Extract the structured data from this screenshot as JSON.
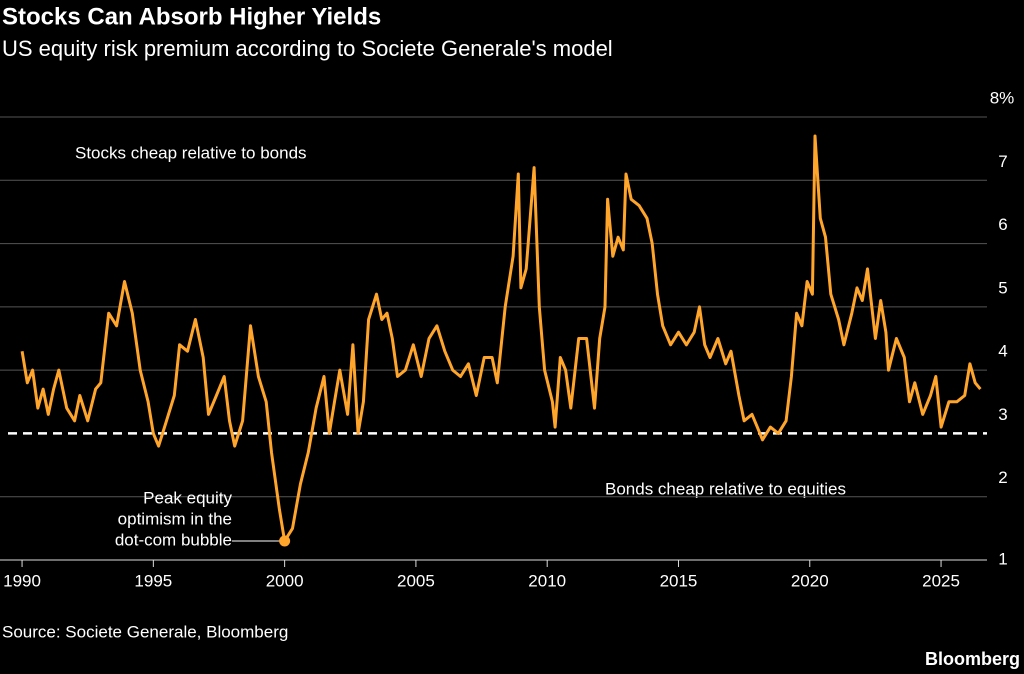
{
  "chart_data": {
    "type": "line",
    "title": "Stocks Can Absorb Higher Yields",
    "subtitle": "US equity risk premium according to Societe Generale's model",
    "source": "Source: Societe Generale, Bloomberg",
    "brand": "Bloomberg",
    "color": "#ffa52b",
    "grid": true,
    "reference_line": 3,
    "xlim": [
      1989.16,
      2026.75
    ],
    "xticks": [
      1990,
      1995,
      2000,
      2005,
      2010,
      2015,
      2020,
      2025
    ],
    "ylim": [
      1,
      8
    ],
    "yticks": [
      1,
      2,
      3,
      4,
      5,
      6,
      7,
      {
        "value": 8,
        "label": "8%"
      }
    ],
    "region_labels": [
      "Stocks cheap relative to bonds",
      "Bonds cheap relative to equities"
    ],
    "annotation": {
      "lines": [
        "Peak equity",
        "optimism in the",
        "dot-com bubble"
      ],
      "x": 2000,
      "y": 1.3
    },
    "x": [
      1990.0,
      1990.2,
      1990.4,
      1990.6,
      1990.8,
      1991.0,
      1991.2,
      1991.4,
      1991.7,
      1992.0,
      1992.2,
      1992.5,
      1992.8,
      1993.0,
      1993.3,
      1993.6,
      1993.9,
      1994.2,
      1994.5,
      1994.8,
      1995.0,
      1995.2,
      1995.5,
      1995.8,
      1996.0,
      1996.3,
      1996.6,
      1996.9,
      1997.1,
      1997.4,
      1997.7,
      1997.9,
      1998.1,
      1998.4,
      1998.7,
      1999.0,
      1999.3,
      1999.5,
      1999.8,
      2000.0,
      2000.3,
      2000.6,
      2000.9,
      2001.2,
      2001.5,
      2001.7,
      2001.9,
      2002.1,
      2002.4,
      2002.6,
      2002.8,
      2003.0,
      2003.2,
      2003.5,
      2003.7,
      2003.9,
      2004.1,
      2004.3,
      2004.6,
      2004.9,
      2005.2,
      2005.5,
      2005.8,
      2006.1,
      2006.4,
      2006.7,
      2007.0,
      2007.3,
      2007.6,
      2007.9,
      2008.1,
      2008.4,
      2008.7,
      2008.9,
      2009.0,
      2009.2,
      2009.5,
      2009.7,
      2009.9,
      2010.2,
      2010.3,
      2010.5,
      2010.7,
      2010.9,
      2011.2,
      2011.5,
      2011.8,
      2012.0,
      2012.2,
      2012.3,
      2012.5,
      2012.7,
      2012.9,
      2013.0,
      2013.2,
      2013.5,
      2013.8,
      2014.0,
      2014.2,
      2014.4,
      2014.7,
      2015.0,
      2015.3,
      2015.6,
      2015.8,
      2016.0,
      2016.2,
      2016.5,
      2016.8,
      2017.0,
      2017.3,
      2017.5,
      2017.8,
      2018.0,
      2018.2,
      2018.5,
      2018.8,
      2019.1,
      2019.3,
      2019.5,
      2019.7,
      2019.9,
      2020.1,
      2020.2,
      2020.4,
      2020.6,
      2020.8,
      2021.1,
      2021.3,
      2021.6,
      2021.8,
      2022.0,
      2022.2,
      2022.5,
      2022.7,
      2022.9,
      2023.0,
      2023.3,
      2023.6,
      2023.8,
      2024.0,
      2024.3,
      2024.6,
      2024.8,
      2025.0,
      2025.3,
      2025.6,
      2025.9,
      2026.1,
      2026.3,
      2026.5
    ],
    "values": [
      4.3,
      3.8,
      4.0,
      3.4,
      3.7,
      3.3,
      3.7,
      4.0,
      3.4,
      3.2,
      3.6,
      3.2,
      3.7,
      3.8,
      4.9,
      4.7,
      5.4,
      4.9,
      4.0,
      3.5,
      3.0,
      2.8,
      3.2,
      3.6,
      4.4,
      4.3,
      4.8,
      4.2,
      3.3,
      3.6,
      3.9,
      3.2,
      2.8,
      3.2,
      4.7,
      3.9,
      3.5,
      2.7,
      1.8,
      1.3,
      1.5,
      2.2,
      2.7,
      3.4,
      3.9,
      3.0,
      3.5,
      4.0,
      3.3,
      4.4,
      3.0,
      3.5,
      4.8,
      5.2,
      4.8,
      4.9,
      4.5,
      3.9,
      4.0,
      4.4,
      3.9,
      4.5,
      4.7,
      4.3,
      4.0,
      3.9,
      4.1,
      3.6,
      4.2,
      4.2,
      3.8,
      5.0,
      5.8,
      7.1,
      5.3,
      5.6,
      7.2,
      5.0,
      4.0,
      3.5,
      3.1,
      4.2,
      4.0,
      3.4,
      4.5,
      4.5,
      3.4,
      4.5,
      5.0,
      6.7,
      5.8,
      6.1,
      5.9,
      7.1,
      6.7,
      6.6,
      6.4,
      6.0,
      5.2,
      4.7,
      4.4,
      4.6,
      4.4,
      4.6,
      5.0,
      4.4,
      4.2,
      4.5,
      4.1,
      4.3,
      3.6,
      3.2,
      3.3,
      3.1,
      2.9,
      3.1,
      3.0,
      3.2,
      3.9,
      4.9,
      4.7,
      5.4,
      5.2,
      7.7,
      6.4,
      6.1,
      5.2,
      4.8,
      4.4,
      4.9,
      5.3,
      5.1,
      5.6,
      4.5,
      5.1,
      4.6,
      4.0,
      4.5,
      4.2,
      3.5,
      3.8,
      3.3,
      3.6,
      3.9,
      3.1,
      3.5,
      3.5,
      3.6,
      4.1,
      3.8,
      3.7
    ]
  }
}
